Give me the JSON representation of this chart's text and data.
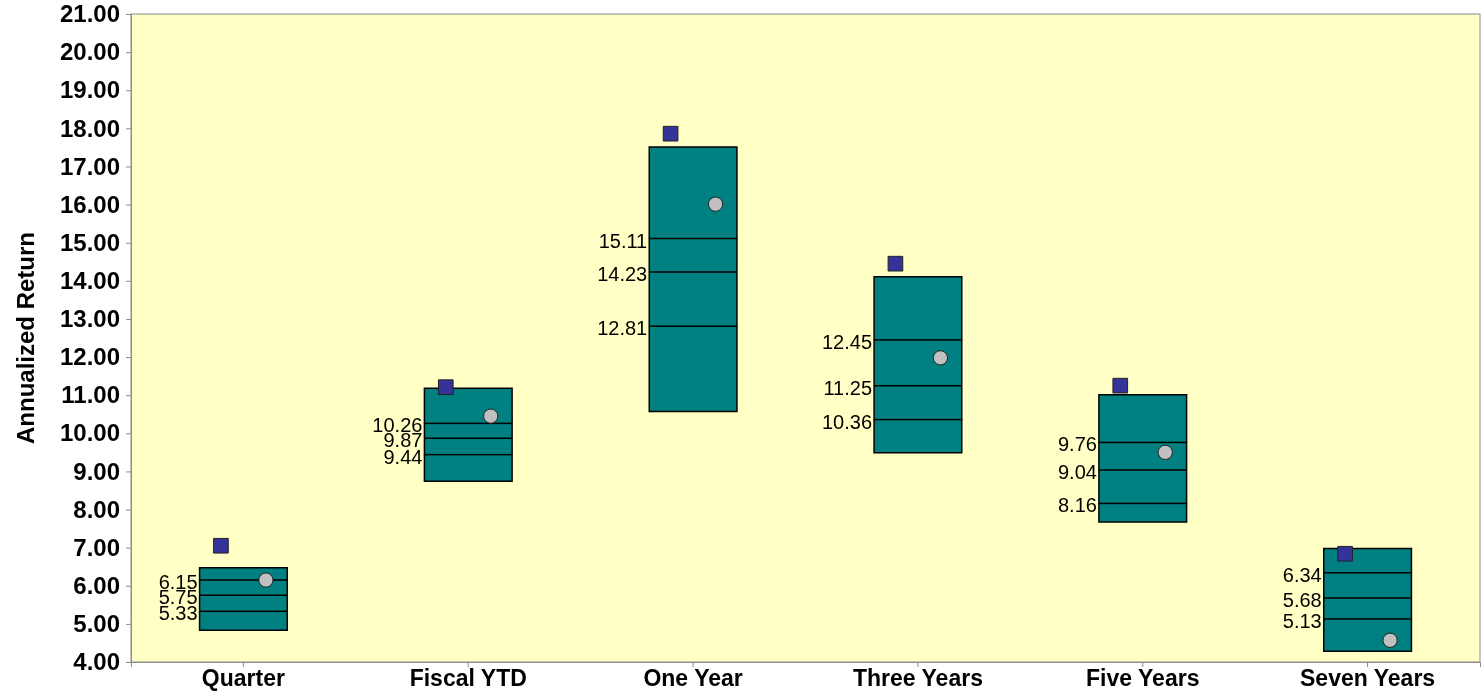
{
  "chart_data": {
    "type": "box",
    "ylabel": "Annualized Return",
    "categories": [
      "Quarter",
      "Fiscal YTD",
      "One Year",
      "Three Years",
      "Five Years",
      "Seven Years"
    ],
    "series": [
      {
        "color": "#008080",
        "boxes": [
          {
            "low": 4.83,
            "q1": 5.33,
            "median": 5.75,
            "q3": 6.15,
            "high": 6.47
          },
          {
            "low": 8.74,
            "q1": 9.44,
            "median": 9.87,
            "q3": 10.26,
            "high": 11.18
          },
          {
            "low": 10.57,
            "q1": 12.81,
            "median": 14.23,
            "q3": 15.11,
            "high": 17.51
          },
          {
            "low": 9.49,
            "q1": 10.36,
            "median": 11.25,
            "q3": 12.45,
            "high": 14.11
          },
          {
            "low": 7.67,
            "q1": 8.16,
            "median": 9.04,
            "q3": 9.76,
            "high": 11.01
          },
          {
            "low": 4.28,
            "q1": 5.13,
            "median": 5.68,
            "q3": 6.34,
            "high": 6.98
          }
        ]
      },
      {
        "type": "scatter",
        "color": "#333399",
        "marker": "square",
        "x": [
          "Quarter",
          "Fiscal YTD",
          "One Year",
          "Three Years",
          "Five Years",
          "Seven Years"
        ],
        "values": [
          7.05,
          11.21,
          17.86,
          14.45,
          11.25,
          6.84
        ]
      },
      {
        "type": "scatter",
        "color": "#c0c0c0",
        "marker": "circle",
        "x": [
          "Quarter",
          "Fiscal YTD",
          "One Year",
          "Three Years",
          "Five Years",
          "Seven Years"
        ],
        "values": [
          6.15,
          10.45,
          16.01,
          11.98,
          9.5,
          4.57
        ]
      }
    ],
    "annotations": [
      {
        "text": "6.15",
        "x": "Quarter",
        "y": 6.15
      },
      {
        "text": "5.75",
        "x": "Quarter",
        "y": 5.75
      },
      {
        "text": "5.33",
        "x": "Quarter",
        "y": 5.33
      },
      {
        "text": "10.26",
        "x": "Fiscal YTD",
        "y": 10.26
      },
      {
        "text": "9.87",
        "x": "Fiscal YTD",
        "y": 9.87
      },
      {
        "text": "9.44",
        "x": "Fiscal YTD",
        "y": 9.44
      },
      {
        "text": "15.11",
        "x": "One Year",
        "y": 15.11
      },
      {
        "text": "14.23",
        "x": "One Year",
        "y": 14.23
      },
      {
        "text": "12.81",
        "x": "One Year",
        "y": 12.81
      },
      {
        "text": "12.45",
        "x": "Three Years",
        "y": 12.45
      },
      {
        "text": "11.25",
        "x": "Three Years",
        "y": 11.25
      },
      {
        "text": "10.36",
        "x": "Three Years",
        "y": 10.36
      },
      {
        "text": "9.76",
        "x": "Five Years",
        "y": 9.76
      },
      {
        "text": "9.04",
        "x": "Five Years",
        "y": 9.04
      },
      {
        "text": "8.16",
        "x": "Five Years",
        "y": 8.16
      },
      {
        "text": "6.34",
        "x": "Seven Years",
        "y": 6.34
      },
      {
        "text": "5.68",
        "x": "Seven Years",
        "y": 5.68
      },
      {
        "text": "5.13",
        "x": "Seven Years",
        "y": 5.13
      }
    ],
    "ylim": [
      4,
      21
    ],
    "yticks": [
      {
        "value": 4,
        "label": "4.00"
      },
      {
        "value": 5,
        "label": "5.00"
      },
      {
        "value": 6,
        "label": "6.00"
      },
      {
        "value": 7,
        "label": "7.00"
      },
      {
        "value": 8,
        "label": "8.00"
      },
      {
        "value": 9,
        "label": "9.00"
      },
      {
        "value": 10,
        "label": "10.00"
      },
      {
        "value": 11,
        "label": "11.00"
      },
      {
        "value": 12,
        "label": "12.00"
      },
      {
        "value": 13,
        "label": "13.00"
      },
      {
        "value": 14,
        "label": "14.00"
      },
      {
        "value": 15,
        "label": "15.00"
      },
      {
        "value": 16,
        "label": "16.00"
      },
      {
        "value": 17,
        "label": "17.00"
      },
      {
        "value": 18,
        "label": "18.00"
      },
      {
        "value": 19,
        "label": "19.00"
      },
      {
        "value": 20,
        "label": "20.00"
      },
      {
        "value": 21,
        "label": "21.00"
      }
    ]
  }
}
